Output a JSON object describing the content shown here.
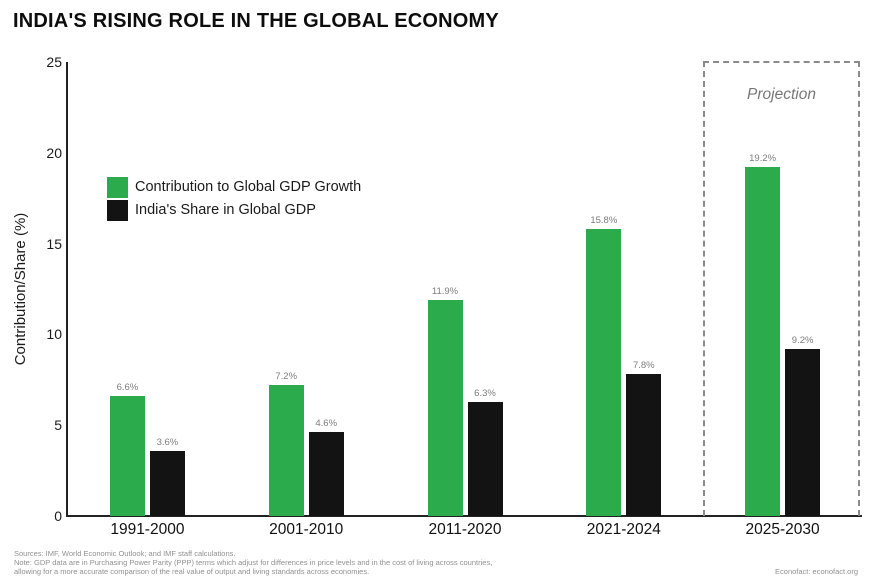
{
  "title": "INDIA'S RISING ROLE IN THE GLOBAL ECONOMY",
  "chart_data": {
    "type": "bar",
    "categories": [
      "1991-2000",
      "2001-2010",
      "2011-2020",
      "2021-2024",
      "2025-2030"
    ],
    "series": [
      {
        "name": "Contribution to Global GDP Growth",
        "color": "#2bab4c",
        "values": [
          6.6,
          7.2,
          11.9,
          15.8,
          19.2
        ]
      },
      {
        "name": "India's Share in Global GDP",
        "color": "#131313",
        "values": [
          3.6,
          4.6,
          6.3,
          7.8,
          9.2
        ]
      }
    ],
    "value_label_format": "percent-one-decimal",
    "ylabel": "Contribution/Share (%)",
    "yticks": [
      0,
      5,
      10,
      15,
      20,
      25
    ],
    "ylim": [
      0,
      25
    ],
    "grid": false,
    "legend_position": "upper-left-inside",
    "annotation": {
      "label": "Projection",
      "applies_to": "2025-2030",
      "style": "dashed-box"
    }
  },
  "footer": {
    "line1": "Sources: IMF, World Economic Outlook; and IMF staff calculations.",
    "line2": "Note: GDP data are in Purchasing Power Parity (PPP) terms which adjust for differences in price levels and in the cost of living across countries,",
    "line3": "allowing for a more accurate comparison of the real value of output and living standards across economies.",
    "credit": "Econofact: econofact.org"
  },
  "colors": {
    "bar_green": "#2bab4c",
    "bar_black": "#131313",
    "value_label_gray": "#7d7d7d",
    "dashed_box_gray": "#8a8a8a",
    "axis_black": "#222222"
  }
}
